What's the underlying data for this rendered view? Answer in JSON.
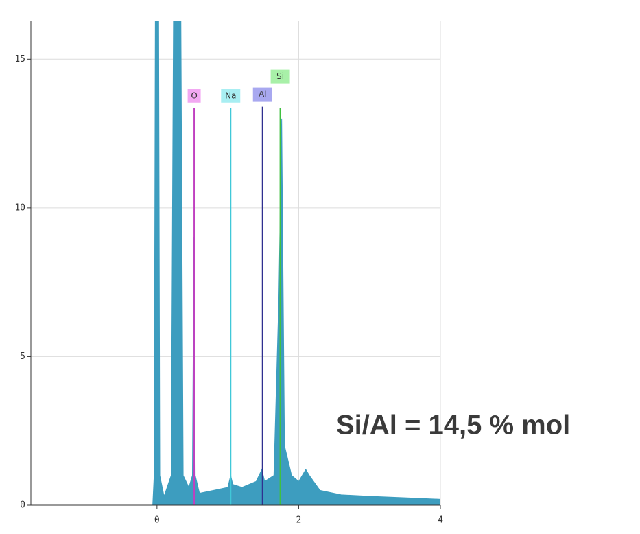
{
  "chart_data": {
    "type": "spectrum",
    "annotation": "Si/Al = 14,5 % mol",
    "x": [
      -0.06,
      -0.04,
      -0.02,
      0.02,
      0.04,
      0.1,
      0.2,
      0.24,
      0.33,
      0.37,
      0.45,
      0.5,
      0.52,
      0.54,
      0.6,
      0.8,
      1.0,
      1.04,
      1.07,
      1.2,
      1.4,
      1.48,
      1.52,
      1.65,
      1.72,
      1.76,
      1.8,
      1.9,
      2.0,
      2.1,
      2.15,
      2.3,
      2.6,
      3.0,
      3.5,
      4.0
    ],
    "values": [
      0,
      1,
      20,
      20,
      1,
      0.3,
      1,
      20,
      20,
      1,
      0.6,
      1,
      9,
      1,
      0.4,
      0.5,
      0.6,
      1,
      0.7,
      0.6,
      0.8,
      1.2,
      0.8,
      1,
      7,
      13,
      2,
      1,
      0.8,
      1.2,
      1.0,
      0.5,
      0.35,
      0.3,
      0.25,
      0.2
    ],
    "color": "#3d9dbf",
    "markers": [
      {
        "label": "O",
        "x": 0.525,
        "height": 13.35,
        "color": "#c040c0",
        "label_color": "#f2a8f2"
      },
      {
        "label": "Na",
        "x": 1.04,
        "height": 13.35,
        "color": "#40c8d8",
        "label_color": "#a8eef2"
      },
      {
        "label": "Al",
        "x": 1.49,
        "height": 13.4,
        "color": "#303090",
        "label_color": "#a8a8f0"
      },
      {
        "label": "Si",
        "x": 1.74,
        "height": 13.35,
        "color": "#40c040",
        "label_color": "#a8f0a8"
      }
    ],
    "xlim": [
      -1.78,
      4
    ],
    "ylim": [
      0,
      16.3
    ],
    "xticks": [
      0,
      2,
      4
    ],
    "yticks": [
      0,
      5,
      10,
      15
    ],
    "grid": true
  }
}
